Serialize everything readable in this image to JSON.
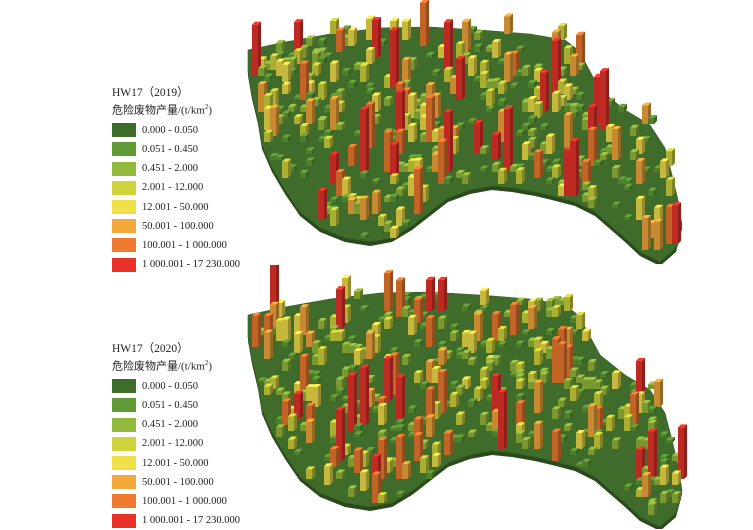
{
  "maps": [
    {
      "title": "HW17（2019）",
      "subtitle_text": "危险废物产量/(t/km",
      "subtitle_sup": "2",
      "subtitle_close": ")"
    },
    {
      "title": "HW17（2020）",
      "subtitle_text": "危险废物产量/(t/km",
      "subtitle_sup": "2",
      "subtitle_close": ")"
    }
  ],
  "legend": {
    "classes": [
      {
        "label": "0.000 - 0.050",
        "color": "#3f6b2b"
      },
      {
        "label": "0.051 - 0.450",
        "color": "#5f9a36"
      },
      {
        "label": "0.451 - 2.000",
        "color": "#93b93d"
      },
      {
        "label": "2.001 - 12.000",
        "color": "#cfd43c"
      },
      {
        "label": "12.001 - 50.000",
        "color": "#f2e04a"
      },
      {
        "label": "50.001 - 100.000",
        "color": "#f4a83a"
      },
      {
        "label": "100.001 - 1 000.000",
        "color": "#ee7a2f"
      },
      {
        "label": "1 000.001 - 17 230.000",
        "color": "#e8322a"
      }
    ]
  }
}
